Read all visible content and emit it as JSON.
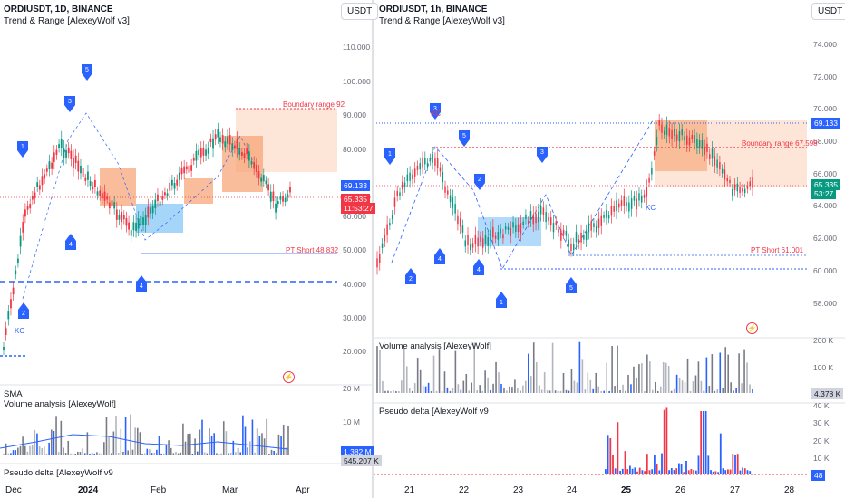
{
  "left": {
    "symbol": "ORDIUSDT, 1D, BINANCE",
    "indicator": "Trend & Range [AlexeyWolf v3]",
    "currency": "USDT",
    "price_labels": [
      "110.000",
      "100.000",
      "90.000",
      "80.000",
      "70.000",
      "60.000",
      "50.000",
      "40.000",
      "30.000",
      "20.000"
    ],
    "boundary_label": "Boundary range 92",
    "pt_label": "PT Short 48.832",
    "kc_label": "KC",
    "tag_blue": "69.133",
    "tag_red_price": "65.335",
    "tag_red_time": "11:53:27",
    "vol_panel_sma": "SMA",
    "vol_panel_title": "Volume analysis [AlexeyWolf]",
    "vol_labels": [
      "20 M",
      "10 M"
    ],
    "vol_tag_blue": "1.382 M",
    "vol_tag_grey": "545.207 K",
    "delta_title": "Pseudo delta [AlexeyWolf v9",
    "x_labels": [
      "Dec",
      "2024",
      "Feb",
      "Mar",
      "Apr"
    ]
  },
  "right": {
    "symbol": "ORDIUSDT, 1h, BINANCE",
    "indicator": "Trend & Range [AlexeyWolf v3]",
    "currency": "USDT",
    "price_labels": [
      "74.000",
      "72.000",
      "70.000",
      "68.000",
      "66.000",
      "64.000",
      "62.000",
      "60.000",
      "58.000"
    ],
    "boundary_label": "Boundary range 67.598",
    "pt_label": "PT Short 61.001",
    "kc_label": "KC",
    "kc_label2": "KC",
    "tag_blue": "69.133",
    "tag_green_price": "65.335",
    "tag_green_time": "53:27",
    "vol_panel_title": "Volume analysis [AlexeyWolf]",
    "vol_labels": [
      "200 K",
      "100 K"
    ],
    "vol_tag_grey": "4.378 K",
    "delta_title": "Pseudo delta [AlexeyWolf v9",
    "delta_labels": [
      "40 K",
      "30 K",
      "20 K",
      "10 K"
    ],
    "delta_tag": "48",
    "x_labels": [
      "21",
      "22",
      "23",
      "24",
      "25",
      "26",
      "27",
      "28"
    ]
  },
  "colors": {
    "blue": "#2962ff",
    "red": "#f23645",
    "green": "#089981",
    "orange_zone": "#f7a172",
    "blue_zone": "#90caf9"
  },
  "wave_labels_left": [
    "1",
    "2",
    "3",
    "4",
    "5",
    "1",
    "2",
    "3",
    "4"
  ],
  "wave_labels_right": [
    "1",
    "2",
    "3",
    "4",
    "5",
    "1",
    "2",
    "3",
    "4",
    "5"
  ]
}
